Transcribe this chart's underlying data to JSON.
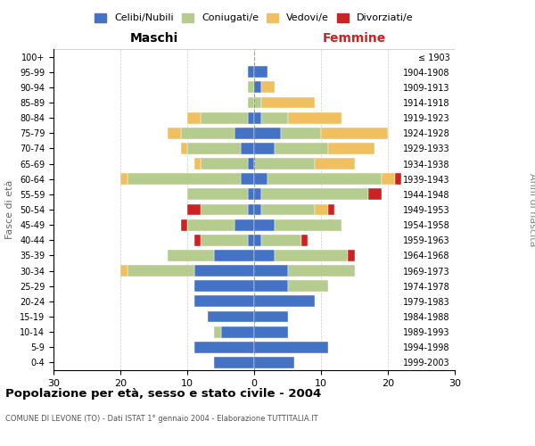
{
  "age_groups": [
    "0-4",
    "5-9",
    "10-14",
    "15-19",
    "20-24",
    "25-29",
    "30-34",
    "35-39",
    "40-44",
    "45-49",
    "50-54",
    "55-59",
    "60-64",
    "65-69",
    "70-74",
    "75-79",
    "80-84",
    "85-89",
    "90-94",
    "95-99",
    "100+"
  ],
  "birth_years": [
    "1999-2003",
    "1994-1998",
    "1989-1993",
    "1984-1988",
    "1979-1983",
    "1974-1978",
    "1969-1973",
    "1964-1968",
    "1959-1963",
    "1954-1958",
    "1949-1953",
    "1944-1948",
    "1939-1943",
    "1934-1938",
    "1929-1933",
    "1924-1928",
    "1919-1923",
    "1914-1918",
    "1909-1913",
    "1904-1908",
    "≤ 1903"
  ],
  "colors": {
    "celibe": "#4472C4",
    "coniugato": "#B5CC8E",
    "vedovo": "#F0C060",
    "divorziato": "#CC2222"
  },
  "maschi": {
    "celibe": [
      6,
      9,
      5,
      7,
      9,
      9,
      9,
      6,
      1,
      3,
      1,
      1,
      2,
      1,
      2,
      3,
      1,
      0,
      0,
      1,
      0
    ],
    "coniugato": [
      0,
      0,
      1,
      0,
      0,
      0,
      10,
      7,
      7,
      7,
      7,
      9,
      17,
      7,
      8,
      8,
      7,
      1,
      1,
      0,
      0
    ],
    "vedovo": [
      0,
      0,
      0,
      0,
      0,
      0,
      1,
      0,
      0,
      0,
      0,
      0,
      1,
      1,
      1,
      2,
      2,
      0,
      0,
      0,
      0
    ],
    "divorziato": [
      0,
      0,
      0,
      0,
      0,
      0,
      0,
      0,
      1,
      1,
      2,
      0,
      0,
      0,
      0,
      0,
      0,
      0,
      0,
      0,
      0
    ]
  },
  "femmine": {
    "celibe": [
      6,
      11,
      5,
      5,
      9,
      5,
      5,
      3,
      1,
      3,
      1,
      1,
      2,
      0,
      3,
      4,
      1,
      0,
      1,
      2,
      0
    ],
    "coniugato": [
      0,
      0,
      0,
      0,
      0,
      6,
      10,
      11,
      6,
      10,
      8,
      16,
      17,
      9,
      8,
      6,
      4,
      1,
      0,
      0,
      0
    ],
    "vedovo": [
      0,
      0,
      0,
      0,
      0,
      0,
      0,
      0,
      0,
      0,
      2,
      0,
      2,
      6,
      7,
      10,
      8,
      8,
      2,
      0,
      0
    ],
    "divorziato": [
      0,
      0,
      0,
      0,
      0,
      0,
      0,
      1,
      1,
      0,
      1,
      2,
      1,
      0,
      0,
      0,
      0,
      0,
      0,
      0,
      0
    ]
  },
  "xlim": 30,
  "title": "Popolazione per età, sesso e stato civile - 2004",
  "subtitle": "COMUNE DI LEVONE (TO) - Dati ISTAT 1° gennaio 2004 - Elaborazione TUTTITALIA.IT",
  "ylabel_left": "Fasce di età",
  "ylabel_right": "Anni di nascita",
  "xlabel_left": "Maschi",
  "xlabel_right": "Femmine",
  "legend_labels": [
    "Celibi/Nubili",
    "Coniugati/e",
    "Vedovi/e",
    "Divorziati/e"
  ],
  "background_color": "#ffffff",
  "bar_height": 0.75
}
